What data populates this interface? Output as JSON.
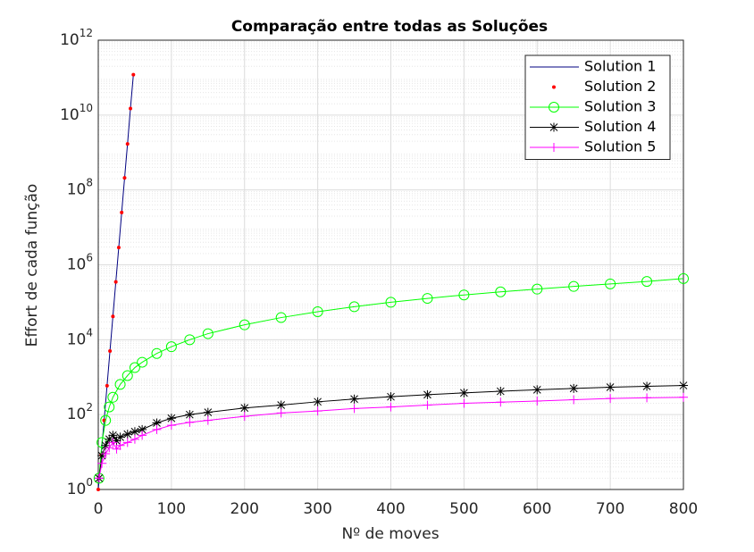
{
  "chart_data": {
    "type": "line",
    "title": "Comparação entre todas as Soluções",
    "xlabel": "Nº de moves",
    "ylabel": "Effort de cada função",
    "xlim": [
      0,
      800
    ],
    "xticks": [
      0,
      100,
      200,
      300,
      400,
      500,
      600,
      700,
      800
    ],
    "ylim": [
      1,
      1000000000000
    ],
    "yscale": "log",
    "yticks": [
      {
        "value": 1,
        "label": "10^0"
      },
      {
        "value": 100,
        "label": "10^2"
      },
      {
        "value": 10000,
        "label": "10^4"
      },
      {
        "value": 1000000,
        "label": "10^6"
      },
      {
        "value": 100000000,
        "label": "10^8"
      },
      {
        "value": 10000000000,
        "label": "10^10"
      },
      {
        "value": 1000000000000,
        "label": "10^12"
      }
    ],
    "grid": true,
    "minor_grid": true,
    "legend": "upper right",
    "series": [
      {
        "name": "Solution 1",
        "color": "#000080",
        "line": true,
        "marker": "none",
        "x": [
          0,
          4,
          8,
          12,
          16,
          20,
          24,
          28,
          32,
          36,
          40,
          44,
          48
        ],
        "values": [
          1,
          8.4,
          70,
          590,
          5000,
          42000,
          350000,
          2900000,
          25000000,
          210000000,
          1700000000,
          15000000000,
          120000000000
        ]
      },
      {
        "name": "Solution 2",
        "color": "#ff0000",
        "line": false,
        "marker": "dot",
        "x": [
          0,
          4,
          8,
          12,
          16,
          20,
          24,
          28,
          32,
          36,
          40,
          44,
          48
        ],
        "values": [
          1,
          8.4,
          70,
          590,
          5000,
          42000,
          350000,
          2900000,
          25000000,
          210000000,
          1700000000,
          15000000000,
          120000000000
        ]
      },
      {
        "name": "Solution 3",
        "color": "#00ff00",
        "line": true,
        "marker": "circle",
        "x": [
          1,
          5,
          10,
          15,
          20,
          30,
          40,
          50,
          60,
          80,
          100,
          125,
          150,
          200,
          250,
          300,
          350,
          400,
          450,
          500,
          550,
          600,
          650,
          700,
          750,
          800
        ],
        "values": [
          2,
          18,
          70,
          160,
          290,
          640,
          1100,
          1800,
          2500,
          4300,
          6500,
          10000,
          14500,
          25000,
          39000,
          56000,
          76000,
          100000,
          127000,
          157000,
          190000,
          225000,
          265000,
          310000,
          360000,
          430000
        ]
      },
      {
        "name": "Solution 4",
        "color": "#000000",
        "line": true,
        "marker": "star",
        "x": [
          1,
          5,
          10,
          15,
          20,
          25,
          30,
          40,
          50,
          60,
          80,
          100,
          125,
          150,
          200,
          250,
          300,
          350,
          400,
          450,
          500,
          550,
          600,
          650,
          700,
          750,
          800
        ],
        "values": [
          2,
          8,
          15,
          22,
          28,
          20,
          25,
          30,
          35,
          40,
          60,
          80,
          100,
          115,
          150,
          180,
          220,
          260,
          300,
          340,
          380,
          420,
          460,
          500,
          540,
          570,
          600
        ]
      },
      {
        "name": "Solution 5",
        "color": "#ff00ff",
        "line": true,
        "marker": "plus",
        "x": [
          1,
          5,
          10,
          15,
          20,
          25,
          30,
          40,
          50,
          60,
          80,
          100,
          125,
          150,
          200,
          250,
          300,
          350,
          400,
          450,
          500,
          550,
          600,
          650,
          700,
          750,
          800
        ],
        "values": [
          2,
          5,
          9,
          13,
          18,
          12,
          15,
          18,
          22,
          28,
          40,
          52,
          62,
          70,
          90,
          110,
          125,
          145,
          160,
          180,
          200,
          215,
          230,
          250,
          270,
          280,
          290
        ]
      }
    ]
  }
}
